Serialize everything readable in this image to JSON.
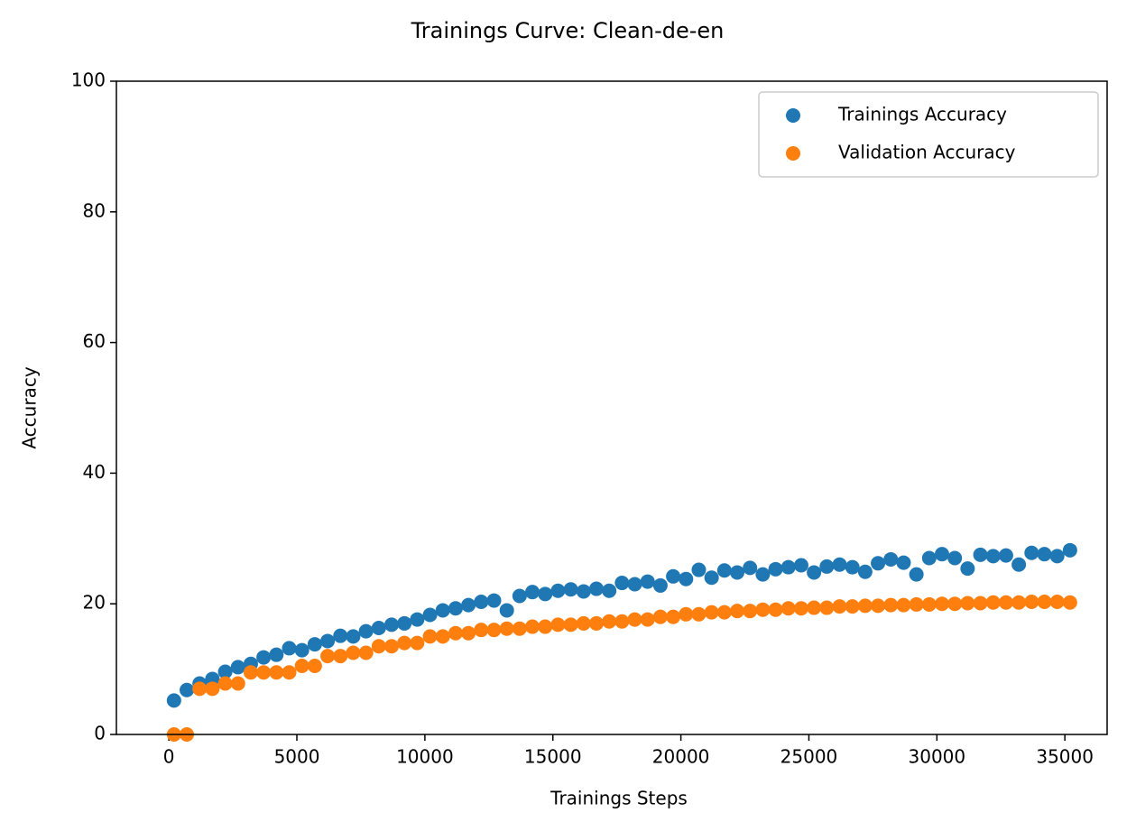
{
  "chart_data": {
    "type": "scatter",
    "title": "Trainings Curve: Clean-de-en",
    "x_label": "Trainings Steps",
    "y_label": "Accuracy",
    "x": [
      200,
      700,
      1200,
      1700,
      2200,
      2700,
      3200,
      3700,
      4200,
      4700,
      5200,
      5700,
      6200,
      6700,
      7200,
      7700,
      8200,
      8700,
      9200,
      9700,
      10200,
      10700,
      11200,
      11700,
      12200,
      12700,
      13200,
      13700,
      14200,
      14700,
      15200,
      15700,
      16200,
      16700,
      17200,
      17700,
      18200,
      18700,
      19200,
      19700,
      20200,
      20700,
      21200,
      21700,
      22200,
      22700,
      23200,
      23700,
      24200,
      24700,
      25200,
      25700,
      26200,
      26700,
      27200,
      27700,
      28200,
      28700,
      29200,
      29700,
      30200,
      30700,
      31200,
      31700,
      32200,
      32700,
      33200,
      33700,
      34200,
      34700,
      35200
    ],
    "series": [
      {
        "name": "Trainings Accuracy",
        "color": "#1f77b4",
        "values": [
          5.2,
          6.8,
          7.8,
          8.5,
          9.6,
          10.3,
          10.8,
          11.8,
          12.2,
          13.2,
          12.9,
          13.8,
          14.3,
          15.1,
          15.0,
          15.8,
          16.3,
          16.8,
          17.0,
          17.6,
          18.3,
          19.0,
          19.3,
          19.8,
          20.3,
          20.5,
          19.0,
          21.2,
          21.8,
          21.5,
          22.0,
          22.2,
          21.9,
          22.3,
          22.0,
          23.2,
          23.0,
          23.4,
          22.8,
          24.2,
          23.8,
          25.2,
          24.0,
          25.1,
          24.8,
          25.5,
          24.5,
          25.3,
          25.6,
          25.9,
          24.8,
          25.7,
          26.0,
          25.6,
          24.9,
          26.2,
          26.8,
          26.3,
          24.5,
          27.0,
          27.6,
          27.0,
          25.4,
          27.5,
          27.3,
          27.4,
          26.0,
          27.8,
          27.6,
          27.3,
          28.2
        ]
      },
      {
        "name": "Validation Accuracy",
        "color": "#ff7f0e",
        "values": [
          0,
          0,
          7,
          7,
          7.8,
          7.8,
          9.5,
          9.5,
          9.5,
          9.5,
          10.5,
          10.5,
          12,
          12,
          12.5,
          12.5,
          13.5,
          13.5,
          14,
          14,
          15,
          15,
          15.5,
          15.5,
          16,
          16,
          16.2,
          16.2,
          16.5,
          16.5,
          16.8,
          16.8,
          17,
          17,
          17.3,
          17.3,
          17.6,
          17.6,
          18,
          18,
          18.4,
          18.4,
          18.7,
          18.7,
          18.9,
          18.9,
          19.1,
          19.1,
          19.3,
          19.3,
          19.4,
          19.4,
          19.6,
          19.6,
          19.7,
          19.7,
          19.8,
          19.8,
          19.9,
          19.9,
          20,
          20,
          20.1,
          20.1,
          20.2,
          20.2,
          20.2,
          20.3,
          20.3,
          20.3,
          20.2
        ]
      }
    ],
    "xlim": [
      -2050,
      36650
    ],
    "xticks": [
      0,
      5000,
      10000,
      15000,
      20000,
      25000,
      30000,
      35000
    ],
    "ylim": [
      0,
      100
    ],
    "yticks": [
      0,
      20,
      40,
      60,
      80,
      100
    ],
    "legend": "upper right"
  }
}
